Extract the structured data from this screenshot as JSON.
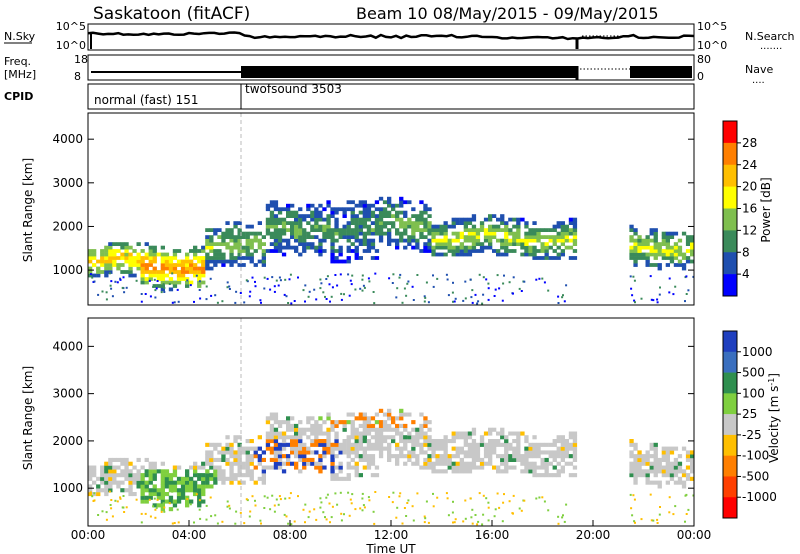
{
  "header": {
    "station": "Saskatoon (fitACF)",
    "beam_dates": "Beam 10 08/May/2015 - 09/May/2015"
  },
  "nsky_panel": {
    "left_label": "N.Sky",
    "left_ticks": [
      "10^5",
      "10^0"
    ],
    "right_ticks": [
      "10^5",
      "10^0"
    ],
    "right_label": "N.Search",
    "right_legend": "......."
  },
  "freq_panel": {
    "left_label_1": "Freq.",
    "left_label_2": "[MHz]",
    "left_ticks": [
      "18",
      "8"
    ],
    "right_ticks": [
      "80",
      "0"
    ],
    "right_label": "Nave",
    "right_legend": "...."
  },
  "cpid_panel": {
    "label": "CPID",
    "modes": [
      {
        "name": "normal (fast) 151",
        "start_hour": 0
      },
      {
        "name": "twofsound 3503",
        "start_hour": 6
      }
    ]
  },
  "chart_data": [
    {
      "type": "heatmap",
      "name": "power",
      "ylabel": "Slant Range [km]",
      "ylim": [
        200,
        4600
      ],
      "yticks": [
        1000,
        2000,
        3000,
        4000
      ],
      "xlim": [
        0,
        24
      ],
      "colorbar": {
        "label": "Power [dB]",
        "ticks": [
          "28",
          "24",
          "20",
          "16",
          "12",
          "8",
          "4"
        ],
        "colors": [
          "#ff0000",
          "#ff7f00",
          "#ffbf00",
          "#ffff00",
          "#7fbf4f",
          "#3a8a5a",
          "#1f4faf",
          "#0000ff"
        ]
      },
      "data_gaps_hours": [
        [
          19.3,
          21.4
        ]
      ],
      "bands": [
        {
          "start": 0.0,
          "end": 2.0,
          "center": 1150,
          "width": 380,
          "power": 22
        },
        {
          "start": 2.0,
          "end": 4.5,
          "center": 1050,
          "width": 500,
          "power": 26
        },
        {
          "start": 4.5,
          "end": 7.0,
          "center": 1500,
          "width": 500,
          "power": 15
        },
        {
          "start": 7.0,
          "end": 9.5,
          "center": 1950,
          "width": 600,
          "power": 12
        },
        {
          "start": 9.5,
          "end": 11.5,
          "center": 1800,
          "width": 700,
          "power": 10
        },
        {
          "start": 11.5,
          "end": 13.5,
          "center": 2050,
          "width": 600,
          "power": 13
        },
        {
          "start": 13.5,
          "end": 19.3,
          "center": 1700,
          "width": 450,
          "power": 17
        },
        {
          "start": 21.4,
          "end": 24.0,
          "center": 1500,
          "width": 450,
          "power": 17
        }
      ]
    },
    {
      "type": "heatmap",
      "name": "velocity",
      "ylabel": "Slant Range [km]",
      "xlabel": "Time UT",
      "ylim": [
        200,
        4600
      ],
      "yticks": [
        1000,
        2000,
        3000,
        4000
      ],
      "xlim": [
        0,
        24
      ],
      "xticks": [
        "00:00",
        "04:00",
        "08:00",
        "12:00",
        "16:00",
        "20:00",
        "00:00"
      ],
      "colorbar": {
        "label": "Velocity [m s^-1]",
        "ticks": [
          "1000",
          "500",
          "100",
          "25",
          "-25",
          "-100",
          "-500",
          "-1000"
        ],
        "colors": [
          "#1f3fbf",
          "#3a6fbf",
          "#2f8f4f",
          "#7fcf3f",
          "#c8c8c8",
          "#ffbf00",
          "#ff7f00",
          "#ff3f00",
          "#ff0000"
        ]
      },
      "data_gaps_hours": [
        [
          19.3,
          21.4
        ]
      ]
    }
  ]
}
